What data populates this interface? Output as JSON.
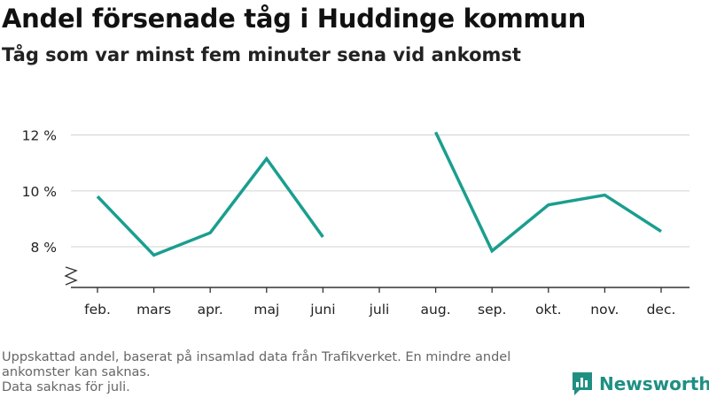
{
  "title": "Andel försenade tåg i Huddinge kommun",
  "subtitle": "Tåg som var minst fem minuter sena vid ankomst",
  "footnote": {
    "line1": "Uppskattad andel, baserat på insamlad data från Trafikverket. En mindre andel ankomster kan saknas.",
    "line2": "Data saknas för juli."
  },
  "logo": {
    "text": "Newsworthy",
    "icon": "bar-chart-logo-icon",
    "color": "#1f8f82"
  },
  "chart_data": {
    "type": "line",
    "categories": [
      "feb.",
      "mars",
      "apr.",
      "maj",
      "juni",
      "juli",
      "aug.",
      "sep.",
      "okt.",
      "nov.",
      "dec."
    ],
    "series": [
      {
        "values": [
          9.8,
          7.7,
          8.5,
          11.15,
          8.35,
          null,
          12.1,
          7.85,
          9.5,
          9.85,
          8.55
        ],
        "color": "#1a9e8f"
      }
    ],
    "yticks": [
      8,
      10,
      12
    ],
    "ytick_labels": [
      "8 %",
      "10 %",
      "12 %"
    ],
    "ylim": [
      6.8,
      12.6
    ],
    "axis_break": true,
    "grid": true,
    "gridline_color": "#d9d9d9",
    "axis_color": "#333333"
  }
}
